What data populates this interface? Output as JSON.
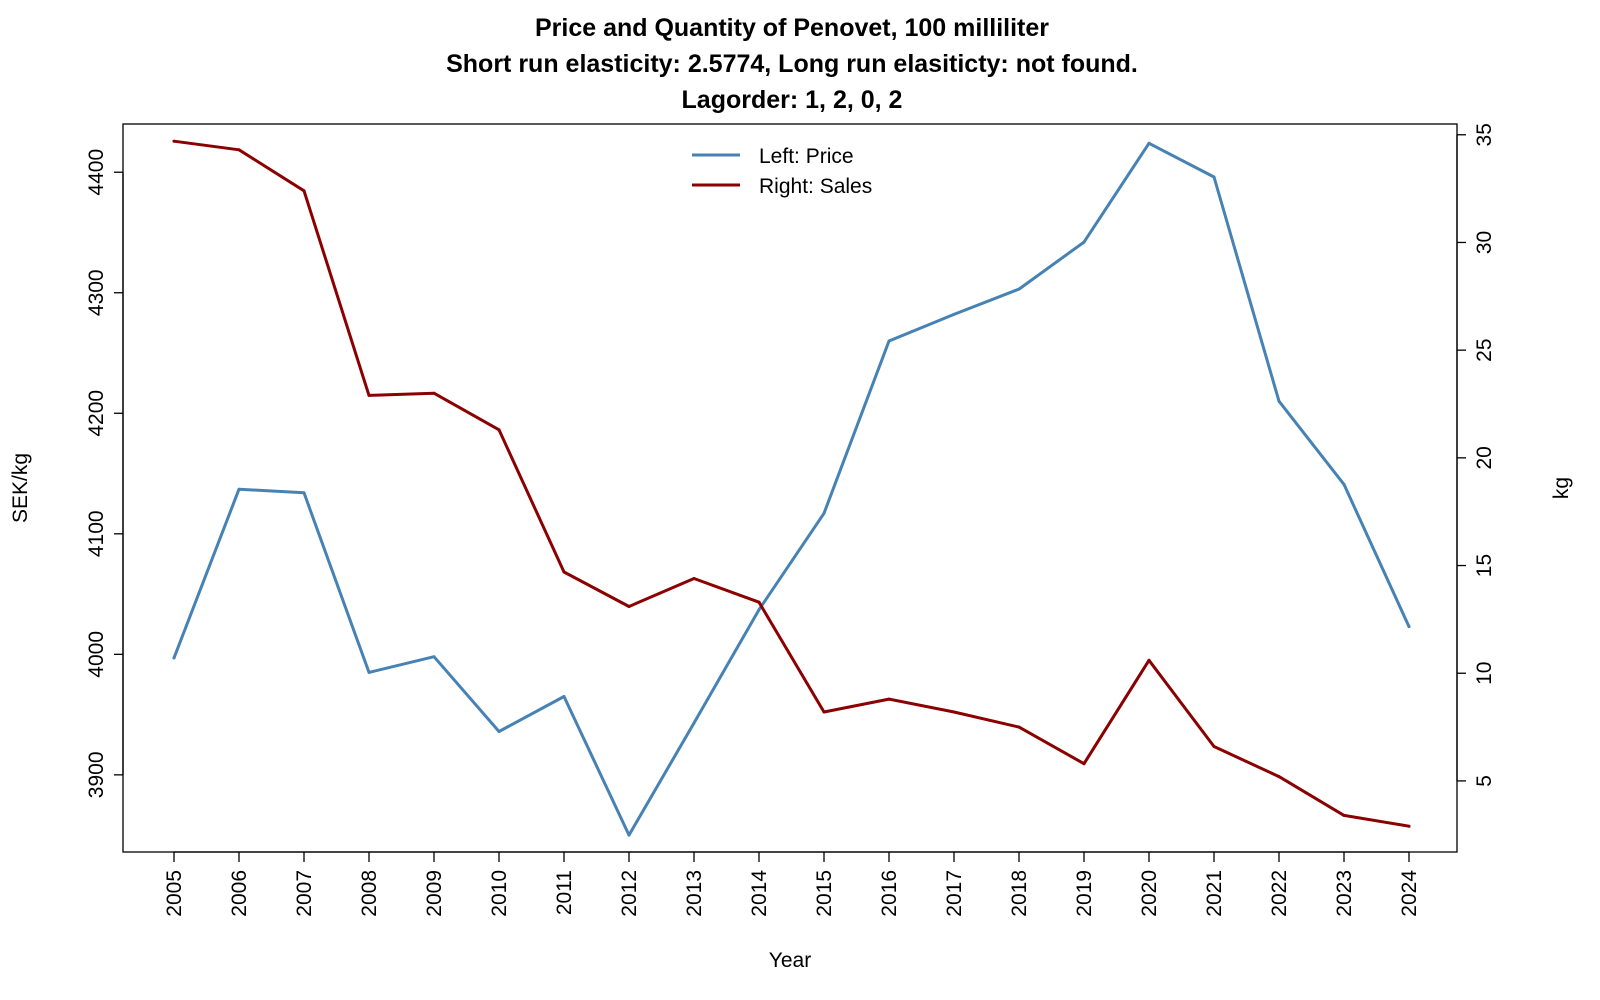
{
  "chart_data": {
    "type": "line",
    "title": [
      "Price and Quantity of Penovet, 100 milliliter",
      "Short run elasticity: 2.5774,   Long run elasiticty: not found.",
      "Lagorder: 1, 2, 0, 2"
    ],
    "xlabel": "Year",
    "ylabel_left": "SEK/kg",
    "ylabel_right": "kg",
    "categories": [
      "2005",
      "2006",
      "2007",
      "2008",
      "2009",
      "2010",
      "2011",
      "2012",
      "2013",
      "2014",
      "2015",
      "2016",
      "2017",
      "2018",
      "2019",
      "2020",
      "2021",
      "2022",
      "2023",
      "2024"
    ],
    "y_left_ticks": [
      "3900",
      "4000",
      "4100",
      "4200",
      "4300",
      "4400"
    ],
    "y_right_ticks": [
      "5",
      "10",
      "15",
      "20",
      "25",
      "30",
      "35"
    ],
    "y_left_range": [
      3836,
      4440
    ],
    "y_right_range": [
      1.7,
      35.5
    ],
    "legend_position": "top-center",
    "series": [
      {
        "name": "Left: Price",
        "axis": "left",
        "color": "#4682b4",
        "values": [
          3997,
          4137,
          4134,
          3985,
          3998,
          3936,
          3965,
          3850,
          3943,
          4037,
          4117,
          4260,
          4282,
          4303,
          4342,
          4424,
          4396,
          4210,
          4141,
          4023
        ]
      },
      {
        "name": "Right: Sales",
        "axis": "right",
        "color": "#8b0000",
        "values": [
          34.7,
          34.3,
          32.4,
          22.9,
          23.0,
          21.3,
          14.7,
          13.1,
          14.4,
          13.3,
          8.2,
          8.8,
          8.2,
          7.5,
          5.8,
          10.6,
          6.6,
          5.2,
          3.4,
          2.9
        ]
      }
    ]
  }
}
